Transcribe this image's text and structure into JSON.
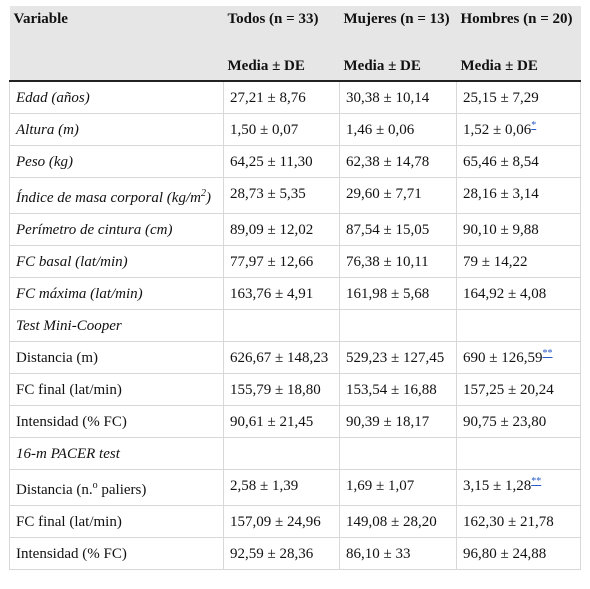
{
  "table": {
    "headers": {
      "variable": "Variable",
      "todos": "Todos (n = 33)",
      "mujeres": "Mujeres (n = 13)",
      "hombres": "Hombres (n = 20)",
      "sub": "Media ± DE"
    },
    "rows": [
      {
        "label": "Edad (años)",
        "todos": "27,21 ± 8,76",
        "mujeres": "30,38 ± 10,14",
        "hombres": "25,15 ± 7,29"
      },
      {
        "label": "Altura (m)",
        "todos": "1,50 ± 0,07",
        "mujeres": "1,46 ± 0,06",
        "hombres": "1,52 ± 0,06",
        "hombres_mark": "*"
      },
      {
        "label": "Peso (kg)",
        "todos": "64,25 ± 11,30",
        "mujeres": "62,38 ± 14,78",
        "hombres": "65,46 ± 8,54"
      },
      {
        "label": "Índice de masa corporal (kg/m",
        "label_sup": "2",
        "label_end": ")",
        "todos": "28,73 ± 5,35",
        "mujeres": "29,60 ± 7,71",
        "hombres": "28,16 ± 3,14"
      },
      {
        "label": "Perímetro de cintura (cm)",
        "todos": "89,09 ± 12,02",
        "mujeres": "87,54 ± 15,05",
        "hombres": "90,10 ± 9,88"
      },
      {
        "label": "FC basal (lat/min)",
        "todos": "77,97 ± 12,66",
        "mujeres": "76,38 ± 10,11",
        "hombres": "79 ± 14,22"
      },
      {
        "label": "FC máxima (lat/min)",
        "todos": "163,76 ± 4,91",
        "mujeres": "161,98 ± 5,68",
        "hombres": "164,92 ± 4,08"
      },
      {
        "section": "Test Mini-Cooper"
      },
      {
        "label": "Distancia (m)",
        "todos": "626,67 ± 148,23",
        "mujeres": "529,23 ± 127,45",
        "hombres": "690 ± 126,59",
        "hombres_mark": "**"
      },
      {
        "label": "FC final (lat/min)",
        "todos": "155,79 ± 18,80",
        "mujeres": "153,54 ± 16,88",
        "hombres": "157,25 ± 20,24"
      },
      {
        "label": "Intensidad (% FC)",
        "todos": "90,61 ± 21,45",
        "mujeres": "90,39 ± 18,17",
        "hombres": "90,75 ± 23,80"
      },
      {
        "section": "16-m PACER test"
      },
      {
        "label": "Distancia (n.",
        "label_sup": "o",
        "label_end": " paliers)",
        "todos": "2,58 ± 1,39",
        "mujeres": "1,69 ± 1,07",
        "hombres": "3,15 ± 1,28",
        "hombres_mark": "**"
      },
      {
        "label": "FC final (lat/min)",
        "todos": "157,09 ± 24,96",
        "mujeres": "149,08 ± 28,20",
        "hombres": "162,30 ± 21,78"
      },
      {
        "label": "Intensidad (% FC)",
        "todos": "92,59 ± 28,36",
        "mujeres": "86,10 ± 33",
        "hombres": "96,80 ± 24,88"
      }
    ]
  }
}
